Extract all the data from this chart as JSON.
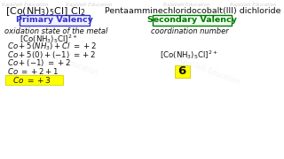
{
  "bg_color": "#ffffff",
  "watermark_color": "#d0d0d0",
  "watermark_text": "RajaValli Education",
  "title_formula": "[Co(NH$_3$)$_5$Cl] Cl$_2$",
  "title_iupac": "  Pentaamminechloridocobalt(III) dichloride",
  "primary_label": "Primary Valency",
  "primary_color": "#3333cc",
  "secondary_label": "Secondary Valency",
  "secondary_color": "#007700",
  "left_italic1": "oxidation state of the metal",
  "left_line1": "[Co(NH$_3$)$_5$Cl]$^{2+}$",
  "left_line2": "$Co + 5(NH_3) + Cl\\ = +2$",
  "left_line3": "$Co + 5(0) + (-1)\\ = +2$",
  "left_line4": "$Co + (-1)\\ = +2$",
  "left_line5": "$Co\\ = +2 + 1$",
  "left_line6": "$Co\\ = +3$",
  "highlight_color": "#ffff00",
  "right_italic1": "coordination number",
  "right_formula": "[Co(NH$_3$)$_5$Cl]$^{2+}$",
  "right_number": "6",
  "text_color": "#111111"
}
